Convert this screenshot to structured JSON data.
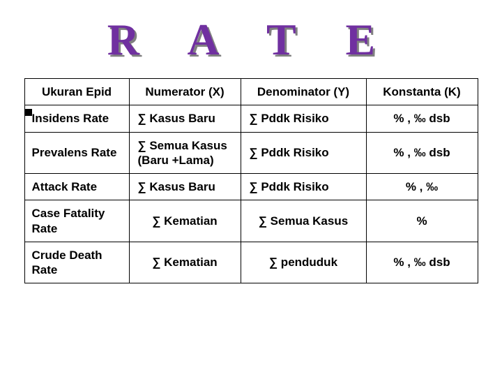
{
  "title": {
    "text": "R A T E",
    "color": "#7030a0",
    "shadow_color": "#808080"
  },
  "table": {
    "headers": [
      "Ukuran Epid",
      "Numerator (X)",
      "Denominator (Y)",
      "Konstanta (K)"
    ],
    "rows": [
      {
        "measure": "Insidens Rate",
        "numerator": "∑ Kasus Baru",
        "denominator": "∑  Pddk Risiko",
        "konstant": "%  ,  ‰  dsb",
        "num_align": "num",
        "den_align": "num",
        "k_align": "center"
      },
      {
        "measure": "Prevalens Rate",
        "numerator": "∑ Semua Kasus (Baru +Lama)",
        "denominator": "∑  Pddk Risiko",
        "konstant": "%  ,  ‰  dsb",
        "num_align": "num",
        "den_align": "num",
        "k_align": "center"
      },
      {
        "measure": "Attack Rate",
        "numerator": "∑ Kasus Baru",
        "denominator": "∑  Pddk Risiko",
        "konstant": "%  ,  ‰",
        "num_align": "num",
        "den_align": "num",
        "k_align": "center"
      },
      {
        "measure": "Case Fatality Rate",
        "numerator": "∑ Kematian",
        "denominator": "∑  Semua Kasus",
        "konstant": "%",
        "num_align": "center",
        "den_align": "center",
        "k_align": "center"
      },
      {
        "measure": "Crude Death Rate",
        "numerator": "∑ Kematian",
        "denominator": "∑  penduduk",
        "konstant": "%  ,  ‰  dsb",
        "num_align": "center",
        "den_align": "center",
        "k_align": "center"
      }
    ]
  },
  "style": {
    "border_color": "#000000",
    "background": "#ffffff",
    "header_fontsize": 17,
    "cell_fontsize": 17
  }
}
